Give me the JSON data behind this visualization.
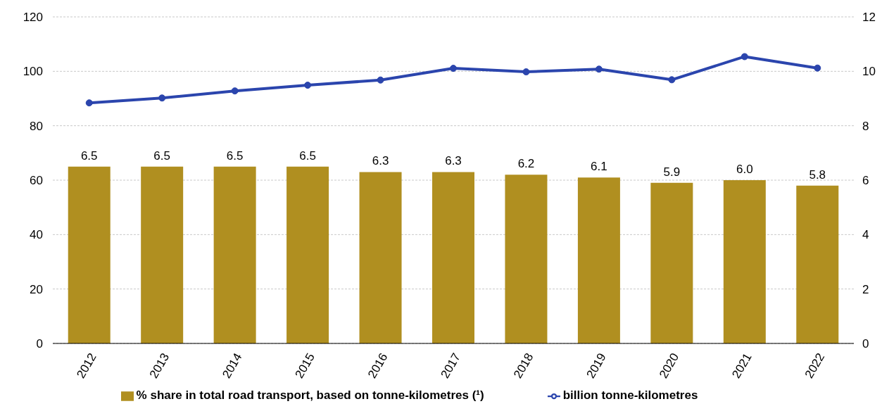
{
  "chart_data": {
    "type": "bar",
    "categories": [
      "2012",
      "2013",
      "2014",
      "2015",
      "2016",
      "2017",
      "2018",
      "2019",
      "2020",
      "2021",
      "2022"
    ],
    "series": [
      {
        "name": "% share in total road transport, based on tonne-kilometres (¹)",
        "type": "bar",
        "axis": "y2",
        "color": "#b08f20",
        "values": [
          6.5,
          6.5,
          6.5,
          6.5,
          6.3,
          6.3,
          6.2,
          6.1,
          5.9,
          6.0,
          5.8
        ],
        "value_labels": [
          "6.5",
          "6.5",
          "6.5",
          "6.5",
          "6.3",
          "6.3",
          "6.2",
          "6.1",
          "5.9",
          "6.0",
          "5.8"
        ]
      },
      {
        "name": "billion tonne-kilometres",
        "type": "line",
        "color": "#2b45ad",
        "values": [
          88.4,
          90.2,
          92.8,
          94.9,
          96.8,
          101.1,
          99.8,
          100.8,
          96.9,
          105.4,
          101.2
        ]
      }
    ],
    "ylim": [
      0,
      120
    ],
    "yticks": [
      0,
      20,
      40,
      60,
      80,
      100,
      120
    ],
    "y2lim": [
      0,
      12
    ],
    "y2ticks": [
      0,
      2,
      4,
      6,
      8,
      10,
      12
    ],
    "grid": "y",
    "legend": "bottom",
    "marker": "circle",
    "line_style": "solid"
  }
}
